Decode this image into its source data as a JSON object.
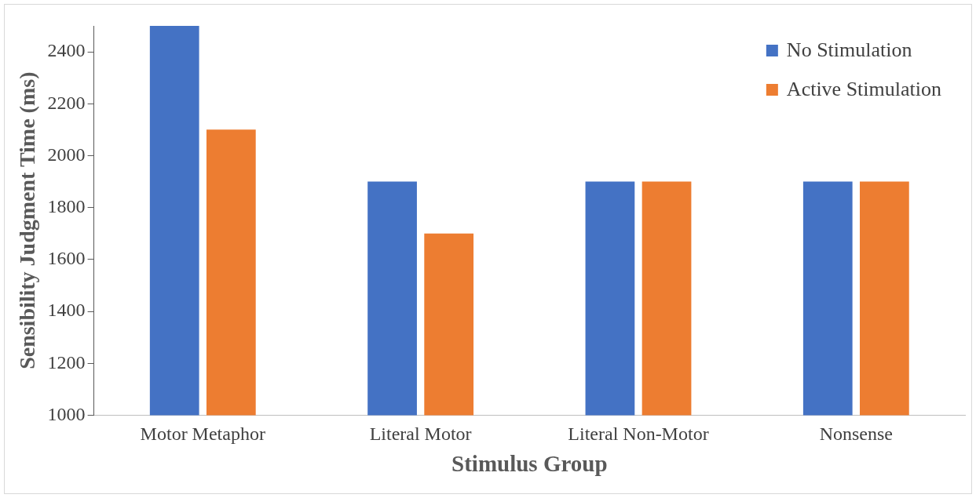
{
  "chart_data": {
    "type": "bar",
    "xlabel": "Stimulus Group",
    "ylabel": "Sensibility Judgment Time (ms)",
    "categories": [
      "Motor Metaphor",
      "Literal Motor",
      "Literal Non-Motor",
      "Nonsense"
    ],
    "series": [
      {
        "name": "No Stimulation",
        "color": "#4472c4",
        "values": [
          2500,
          1900,
          1900,
          1900
        ]
      },
      {
        "name": "Active Stimulation",
        "color": "#ed7d31",
        "values": [
          2100,
          1700,
          1900,
          1900
        ]
      }
    ],
    "ylim": [
      1000,
      2500
    ],
    "yticks": [
      1000,
      1200,
      1400,
      1600,
      1800,
      2000,
      2200,
      2400
    ],
    "grid": false,
    "legend": "top right"
  }
}
